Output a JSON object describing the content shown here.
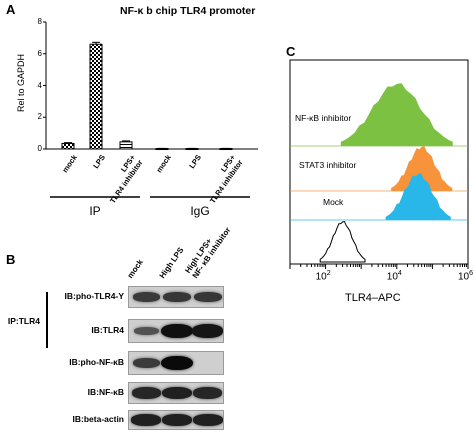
{
  "panel_a": {
    "letter": "A",
    "chart_data": {
      "type": "bar",
      "title": "NF-κ b chip TLR4 promoter",
      "ylabel": "Rel to GAPDH",
      "ylim": [
        0,
        8
      ],
      "yticks": [
        0,
        2,
        4,
        6,
        8
      ],
      "categories": [
        "mock",
        "LPS",
        "LPS+ TLR4 inhibitor",
        "mock",
        "LPS",
        "LPS+ TLR4 inhibitor"
      ],
      "category_lines": [
        [
          "mock"
        ],
        [
          "LPS"
        ],
        [
          "LPS+",
          "TLR4 inhibitor"
        ],
        [
          "mock"
        ],
        [
          "LPS"
        ],
        [
          "LPS+",
          "TLR4 inhibitor"
        ]
      ],
      "values": [
        0.35,
        6.6,
        0.45,
        0.03,
        0.03,
        0.03
      ],
      "errors": [
        0.05,
        0.12,
        0.06,
        0.01,
        0.01,
        0.01
      ],
      "groups": [
        {
          "label": "IP",
          "from": 0,
          "to": 2
        },
        {
          "label": "IgG",
          "from": 3,
          "to": 5
        }
      ]
    }
  },
  "panel_b": {
    "letter": "B",
    "lanes": [
      "mock",
      "High LPS",
      "High LPS+ NF- κB inhibitor"
    ],
    "lane_lines": [
      [
        "mock"
      ],
      [
        "High LPS"
      ],
      [
        "High LPS+",
        "NF- κB inhibitor"
      ]
    ],
    "ip_label": "IP:TLR4",
    "rows": [
      {
        "label": "IB:pho-TLR4-Y",
        "levels": [
          0.55,
          0.6,
          0.6
        ]
      },
      {
        "label": "IB:TLR4",
        "levels": [
          0.35,
          0.95,
          0.9
        ]
      },
      {
        "label": "IB:pho-NF-κB",
        "levels": [
          0.55,
          1.0,
          0.0
        ]
      },
      {
        "label": "IB:NF-κB",
        "levels": [
          0.75,
          0.8,
          0.75
        ]
      },
      {
        "label": "IB:beta-actin",
        "levels": [
          0.8,
          0.8,
          0.8
        ]
      }
    ]
  },
  "panel_c": {
    "letter": "C",
    "chart_data": {
      "type": "area",
      "xlabel": "TLR4–APC",
      "x_scale": "log",
      "xlim": [
        10,
        1000000
      ],
      "xtick_labels": [
        {
          "base": "10",
          "exp": "2",
          "value": 100
        },
        {
          "base": "10",
          "exp": "4",
          "value": 10000
        },
        {
          "base": "10",
          "exp": "6",
          "value": 1000000
        }
      ],
      "series": [
        {
          "name": "NF-κB inhibitor",
          "peak": 10000,
          "color": "#7dc142"
        },
        {
          "name": "STAT3 inhibitor",
          "peak": 50000,
          "color": "#f7933b"
        },
        {
          "name": "Mock",
          "peak": 40000,
          "color": "#29b6e8"
        },
        {
          "name": "",
          "peak": 300,
          "color": "#000000"
        }
      ]
    }
  }
}
